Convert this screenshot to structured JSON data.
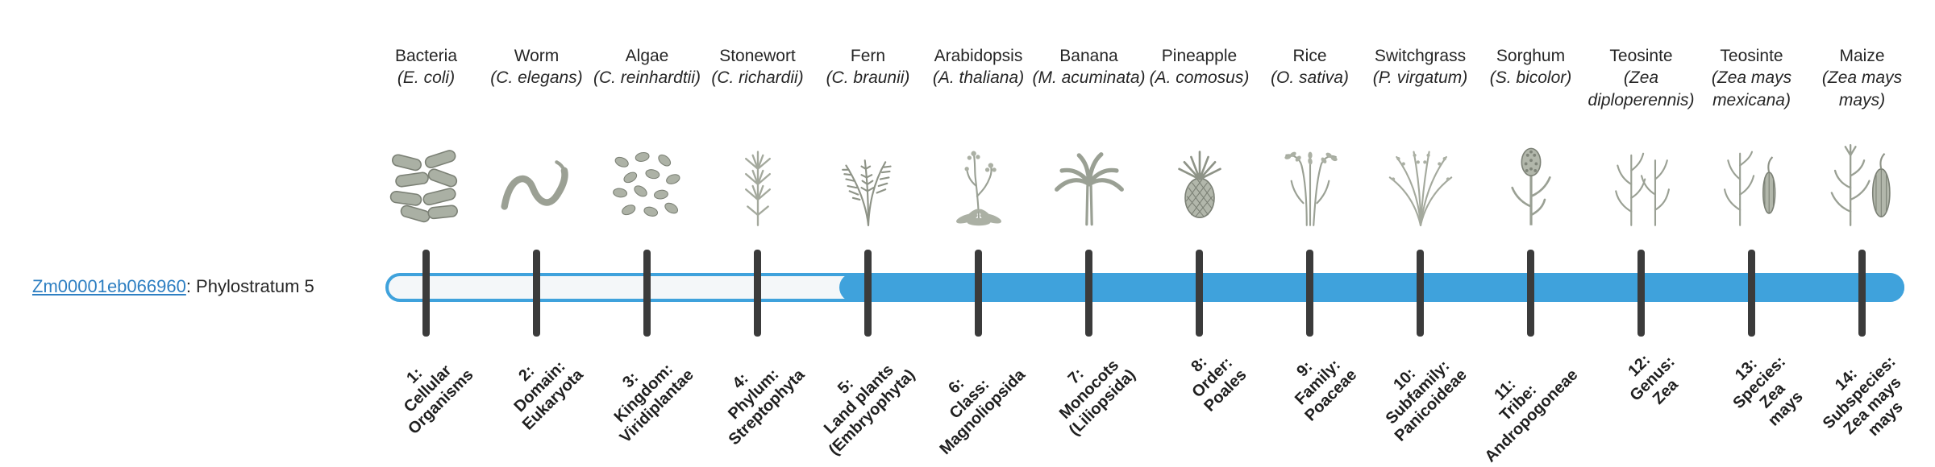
{
  "gene": {
    "id": "Zm00001eb066960",
    "label_suffix": ": Phylostratum 5"
  },
  "colors": {
    "bar_blue": "#3FA2DC",
    "bar_track": "#f4f7f9",
    "tick": "#3b3b3b",
    "link": "#2E7FC2",
    "text": "#262626"
  },
  "bar": {
    "total_strata": 14,
    "highlight_start_stratum": 5
  },
  "organisms": [
    {
      "common": "Bacteria",
      "scientific": "(E. coli)",
      "icon": "bacteria-icon",
      "stratum": "1:\nCellular\nOrganisms"
    },
    {
      "common": "Worm",
      "scientific": "(C. elegans)",
      "icon": "worm-icon",
      "stratum": "2:\nDomain:\nEukaryota"
    },
    {
      "common": "Algae",
      "scientific": "(C. reinhardtii)",
      "icon": "algae-icon",
      "stratum": "3:\nKingdom:\nViridiplantae"
    },
    {
      "common": "Stonewort",
      "scientific": "(C. richardii)",
      "icon": "stonewort-icon",
      "stratum": "4:\nPhylum:\nStreptophyta"
    },
    {
      "common": "Fern",
      "scientific": "(C. braunii)",
      "icon": "fern-icon",
      "stratum": "5:\nLand plants\n(Embryophyta)"
    },
    {
      "common": "Arabidopsis",
      "scientific": "(A. thaliana)",
      "icon": "arabidopsis-icon",
      "stratum": "6:\nClass:\nMagnoliopsida"
    },
    {
      "common": "Banana",
      "scientific": "(M. acuminata)",
      "icon": "banana-icon",
      "stratum": "7:\nMonocots\n(Liliopsida)"
    },
    {
      "common": "Pineapple",
      "scientific": "(A. comosus)",
      "icon": "pineapple-icon",
      "stratum": "8:\nOrder:\nPoales"
    },
    {
      "common": "Rice",
      "scientific": "(O. sativa)",
      "icon": "rice-icon",
      "stratum": "9:\nFamily:\nPoaceae"
    },
    {
      "common": "Switchgrass",
      "scientific": "(P. virgatum)",
      "icon": "switchgrass-icon",
      "stratum": "10:\nSubfamily:\nPanicoideae"
    },
    {
      "common": "Sorghum",
      "scientific": "(S. bicolor)",
      "icon": "sorghum-icon",
      "stratum": "11:\nTribe:\nAndropogoneae"
    },
    {
      "common": "Teosinte",
      "scientific": "(Zea diploperennis)",
      "icon": "teosinte-diploperennis-icon",
      "stratum": "12:\nGenus:\nZea"
    },
    {
      "common": "Teosinte",
      "scientific": "(Zea mays mexicana)",
      "icon": "teosinte-mexicana-icon",
      "stratum": "13:\nSpecies:\nZea\nmays"
    },
    {
      "common": "Maize",
      "scientific": "(Zea mays mays)",
      "icon": "maize-icon",
      "stratum": "14:\nSubspecies:\nZea mays\nmays"
    }
  ]
}
